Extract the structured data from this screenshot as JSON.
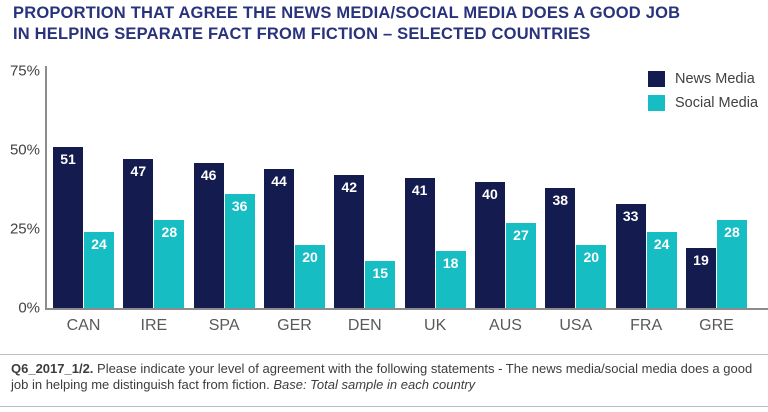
{
  "title": {
    "line1": "PROPORTION THAT AGREE THE NEWS MEDIA/SOCIAL MEDIA DOES A GOOD JOB",
    "line2": "IN HELPING SEPARATE FACT FROM FICTION – SELECTED COUNTRIES"
  },
  "legend": {
    "items": [
      {
        "label": "News Media",
        "color": "#141b4f"
      },
      {
        "label": "Social Media",
        "color": "#16bec4"
      }
    ]
  },
  "chart_data": {
    "type": "bar",
    "title": "Proportion that agree the news media/social media does a good job in helping separate fact from fiction - selected countries",
    "categories": [
      "CAN",
      "IRE",
      "SPA",
      "GER",
      "DEN",
      "UK",
      "AUS",
      "USA",
      "FRA",
      "GRE"
    ],
    "series": [
      {
        "name": "News Media",
        "color": "#141b4f",
        "values": [
          51,
          47,
          46,
          44,
          42,
          41,
          40,
          38,
          33,
          19
        ]
      },
      {
        "name": "Social Media",
        "color": "#16bec4",
        "values": [
          24,
          28,
          36,
          20,
          15,
          18,
          27,
          20,
          24,
          28
        ]
      }
    ],
    "ylabel": "",
    "xlabel": "",
    "ylim": [
      0,
      75
    ],
    "yticks": [
      {
        "label": "75%",
        "value": 75
      },
      {
        "label": "50%",
        "value": 50
      },
      {
        "label": "25%",
        "value": 25
      },
      {
        "label": "0%",
        "value": 0
      }
    ],
    "grid": false,
    "value_labels": "inside-top, white",
    "legend_position": "top-right"
  },
  "footer": {
    "prefix": "Q6_2017_1/2.",
    "body": " Please indicate your level of agreement with the following statements - The news media/social media does a good job in helping me distinguish fact from fiction. ",
    "base": "Base: Total sample in each country"
  }
}
